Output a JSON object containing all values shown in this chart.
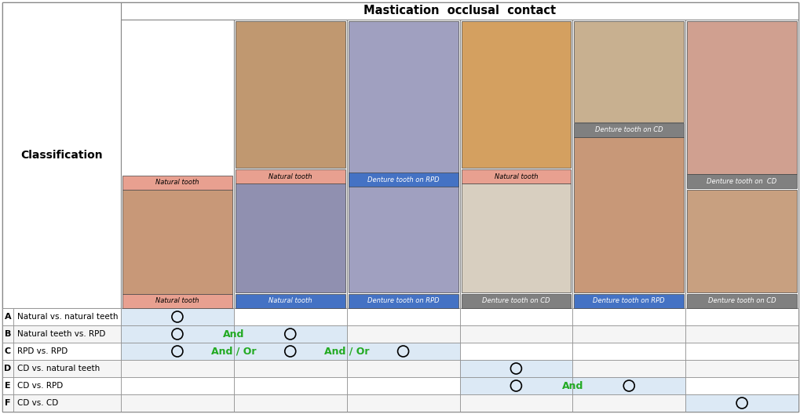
{
  "title": "Mastication  occlusal  contact",
  "classification_label": "Classification",
  "top_labels": [
    "",
    "Natural tooth",
    "Denture tooth on RPD",
    "Natural tooth",
    "Denture tooth on CD",
    "Denture tooth on  CD"
  ],
  "bot_labels": [
    "Natural tooth",
    "Natural tooth",
    "Denture tooth on RPD",
    "Denture tooth on CD",
    "Denture tooth on RPD",
    "Denture tooth on CD"
  ],
  "top_label_colors": [
    "",
    "#e8a090",
    "#4472c4",
    "#e8a090",
    "#808080",
    "#808080"
  ],
  "bot_label_colors": [
    "#e8a090",
    "#4472c4",
    "#4472c4",
    "#808080",
    "#4472c4",
    "#808080"
  ],
  "top_label_text_colors": [
    "",
    "black",
    "white",
    "black",
    "white",
    "white"
  ],
  "bot_label_text_colors": [
    "black",
    "white",
    "white",
    "white",
    "white",
    "white"
  ],
  "col0_has_top": false,
  "col2_single": true,
  "row_labels": [
    {
      "letter": "A",
      "text": "Natural vs. natural teeth"
    },
    {
      "letter": "B",
      "text": "Natural teeth vs. RPD"
    },
    {
      "letter": "C",
      "text": "RPD vs. RPD"
    },
    {
      "letter": "D",
      "text": "CD vs. natural teeth"
    },
    {
      "letter": "E",
      "text": "CD vs. RPD"
    },
    {
      "letter": "F",
      "text": "CD vs. CD"
    }
  ],
  "circles": [
    {
      "row": 0,
      "col": 0
    },
    {
      "row": 1,
      "col": 0
    },
    {
      "row": 1,
      "col": 1
    },
    {
      "row": 2,
      "col": 0
    },
    {
      "row": 2,
      "col": 1
    },
    {
      "row": 2,
      "col": 2
    },
    {
      "row": 3,
      "col": 3
    },
    {
      "row": 4,
      "col": 3
    },
    {
      "row": 4,
      "col": 4
    },
    {
      "row": 5,
      "col": 5
    }
  ],
  "and_info": [
    {
      "row": 1,
      "col": 0,
      "col2": 1,
      "text": "And"
    },
    {
      "row": 2,
      "col": 0,
      "col2": 1,
      "text": "And / Or"
    },
    {
      "row": 2,
      "col": 1,
      "col2": 2,
      "text": "And / Or"
    },
    {
      "row": 4,
      "col": 3,
      "col2": 4,
      "text": "And"
    }
  ],
  "highlight_map": {
    "0": [
      0
    ],
    "1": [
      0,
      1
    ],
    "2": [
      0,
      1,
      2
    ],
    "3": [
      3
    ],
    "4": [
      3,
      4
    ],
    "5": [
      5
    ]
  },
  "highlight_color": "#dce9f5",
  "bg_color": "#ffffff",
  "border_color": "#888888",
  "img_colors": {
    "natural_top": "#c8a090",
    "rpd_top": "#9090b8",
    "cd_top": "#c8a090",
    "natural_bot": "#c89878",
    "rpd_bot": "#c89878",
    "cd_bot": "#d8c8b8"
  }
}
